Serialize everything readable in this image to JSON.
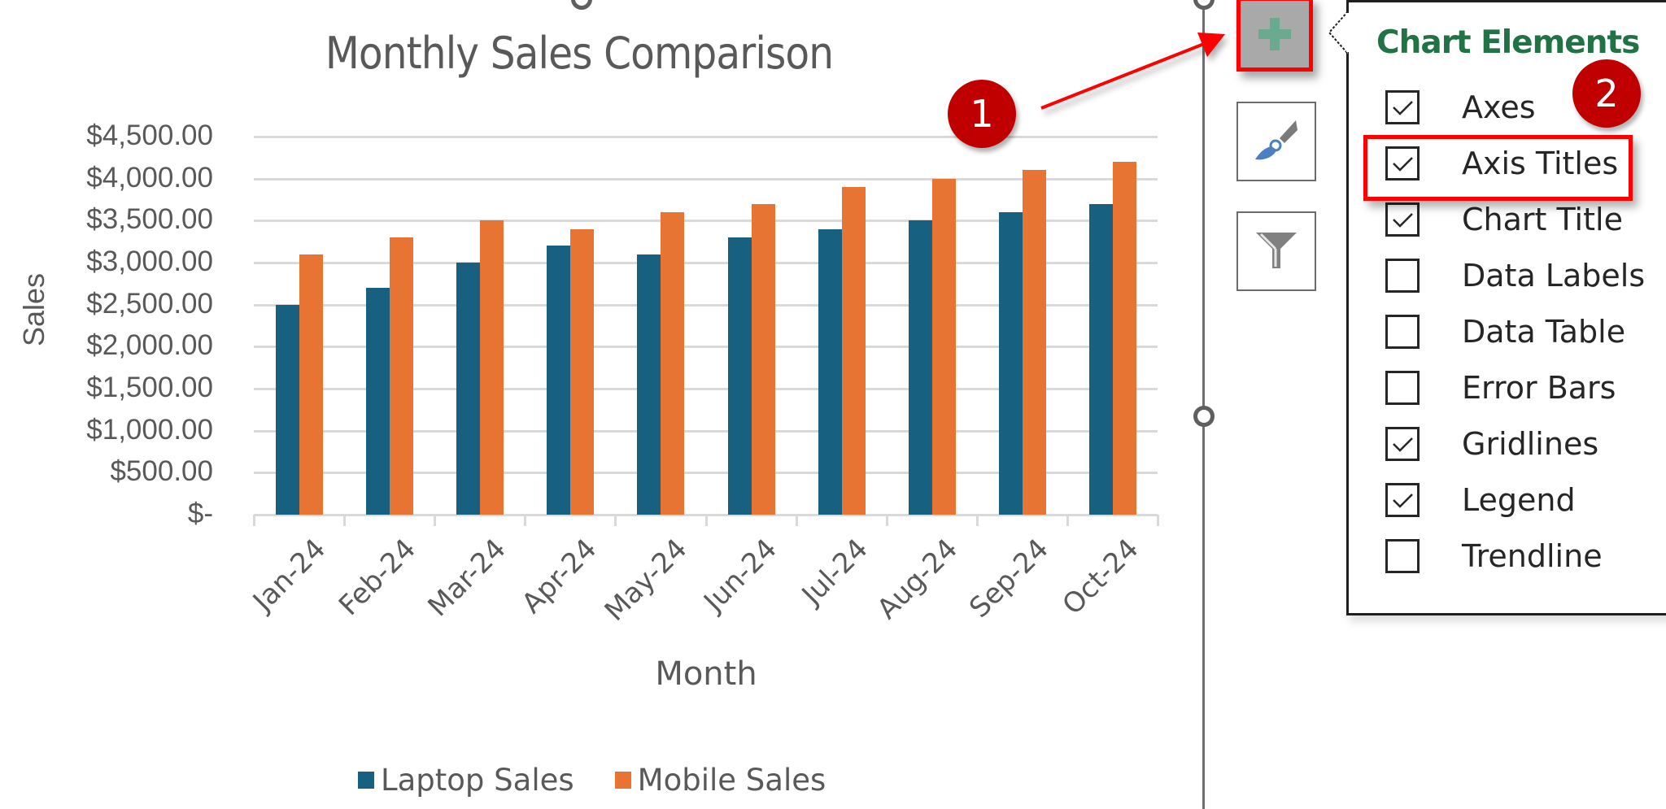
{
  "chart": {
    "title": "Monthly Sales Comparison",
    "y_axis_title": "Sales",
    "x_axis_title": "Month",
    "y_ticks": [
      "$4,500.00",
      "$4,000.00",
      "$3,500.00",
      "$3,000.00",
      "$2,500.00",
      "$2,000.00",
      "$1,500.00",
      "$1,000.00",
      "$500.00",
      "$-"
    ],
    "legend": [
      {
        "label": "Laptop Sales",
        "color": "#17607f"
      },
      {
        "label": "Mobile Sales",
        "color": "#e87433"
      }
    ]
  },
  "chart_data": {
    "type": "bar",
    "title": "Monthly Sales Comparison",
    "xlabel": "Month",
    "ylabel": "Sales",
    "categories": [
      "Jan-24",
      "Feb-24",
      "Mar-24",
      "Apr-24",
      "May-24",
      "Jun-24",
      "Jul-24",
      "Aug-24",
      "Sep-24",
      "Oct-24"
    ],
    "series": [
      {
        "name": "Laptop Sales",
        "color": "#17607f",
        "values": [
          2500,
          2700,
          3000,
          3200,
          3100,
          3300,
          3400,
          3500,
          3600,
          3700
        ]
      },
      {
        "name": "Mobile Sales",
        "color": "#e87433",
        "values": [
          3100,
          3300,
          3500,
          3400,
          3600,
          3700,
          3900,
          4000,
          4100,
          4200
        ]
      }
    ],
    "ylim": [
      0,
      4500
    ],
    "ytick_step": 500,
    "grid": true,
    "legend_position": "bottom"
  },
  "side_buttons": {
    "chart_elements": {
      "icon": "plus-icon",
      "color": "#6aaa8e"
    },
    "chart_styles": {
      "icon": "paintbrush-icon"
    },
    "chart_filters": {
      "icon": "funnel-icon"
    }
  },
  "panel": {
    "title": "Chart Elements",
    "title_color": "#217346",
    "items": [
      {
        "label": "Axes",
        "checked": true
      },
      {
        "label": "Axis Titles",
        "checked": true
      },
      {
        "label": "Chart Title",
        "checked": true
      },
      {
        "label": "Data Labels",
        "checked": false
      },
      {
        "label": "Data Table",
        "checked": false
      },
      {
        "label": "Error Bars",
        "checked": false
      },
      {
        "label": "Gridlines",
        "checked": true
      },
      {
        "label": "Legend",
        "checked": true
      },
      {
        "label": "Trendline",
        "checked": false
      }
    ]
  },
  "annotations": {
    "badge_1": "1",
    "badge_2": "2",
    "color": "#c00000"
  }
}
